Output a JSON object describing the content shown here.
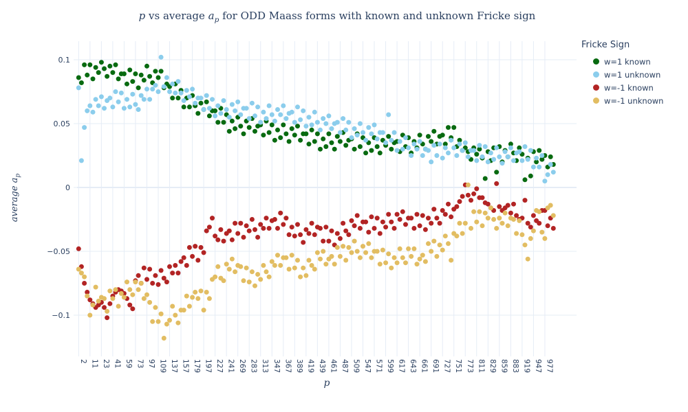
{
  "ui": {
    "title": {
      "p1": "p",
      "p2": " vs average ",
      "p3": "a",
      "p3sub": "p",
      "p4": " for ODD Maass forms with known and unknown Fricke sign"
    },
    "y_title": {
      "main": "average a",
      "sub": "p"
    },
    "x_title": "p",
    "legend_title": "Fricke Sign"
  },
  "chart_data": {
    "type": "scatter",
    "title": "p vs average a_p for ODD Maass forms with known and unknown Fricke sign",
    "xlabel": "p",
    "ylabel": "average a_p",
    "legend_title": "Fricke Sign",
    "legend_position": "top-right-outside",
    "grid": true,
    "grid_color": "#e5ecf6",
    "text_color": "#2a3f5f",
    "background": "#ffffff",
    "x_axis_type": "categorical",
    "tick_every": 4,
    "x_tick_labels": [
      2,
      11,
      23,
      41,
      59,
      73,
      97,
      109,
      137,
      157,
      179,
      197,
      227,
      241,
      269,
      283,
      313,
      347,
      367,
      389,
      419,
      439,
      461,
      487,
      509,
      547,
      571,
      599,
      617,
      643,
      661,
      691,
      727,
      751,
      773,
      811,
      829,
      859,
      883,
      919,
      947,
      977
    ],
    "y_ticks": [
      0.1,
      0.05,
      0,
      -0.05,
      -0.1
    ],
    "ylim": [
      -0.13,
      0.115
    ],
    "x_categories": [
      2,
      3,
      5,
      7,
      11,
      13,
      17,
      19,
      23,
      29,
      31,
      37,
      41,
      43,
      47,
      53,
      59,
      61,
      67,
      71,
      73,
      79,
      83,
      89,
      97,
      101,
      103,
      107,
      109,
      113,
      127,
      131,
      137,
      139,
      149,
      151,
      157,
      163,
      167,
      173,
      179,
      181,
      191,
      193,
      197,
      199,
      211,
      223,
      227,
      229,
      233,
      239,
      241,
      251,
      257,
      263,
      269,
      271,
      277,
      281,
      283,
      293,
      307,
      311,
      313,
      317,
      331,
      337,
      347,
      349,
      353,
      359,
      367,
      373,
      379,
      383,
      389,
      397,
      401,
      409,
      419,
      421,
      431,
      433,
      439,
      443,
      449,
      457,
      461,
      463,
      467,
      479,
      487,
      491,
      499,
      503,
      509,
      521,
      523,
      541,
      547,
      557,
      563,
      569,
      571,
      577,
      587,
      593,
      599,
      601,
      607,
      613,
      617,
      619,
      631,
      641,
      643,
      647,
      653,
      659,
      661,
      673,
      677,
      683,
      691,
      701,
      709,
      719,
      727,
      733,
      739,
      743,
      751,
      757,
      761,
      769,
      773,
      787,
      797,
      809,
      811,
      821,
      823,
      827,
      829,
      839,
      853,
      857,
      859,
      863,
      877,
      881,
      883,
      887,
      907,
      911,
      919,
      929,
      937,
      941,
      947,
      953,
      967,
      971,
      977,
      983,
      991,
      997
    ],
    "series": [
      {
        "name": "w=1 known",
        "color": "#086a10",
        "values": [
          0.086,
          0.082,
          0.096,
          0.088,
          0.096,
          0.085,
          0.094,
          0.09,
          0.098,
          0.093,
          0.087,
          0.095,
          0.09,
          0.096,
          0.085,
          0.089,
          0.089,
          0.081,
          0.092,
          0.083,
          0.089,
          0.078,
          0.088,
          0.084,
          0.095,
          0.087,
          0.082,
          0.091,
          0.086,
          0.091,
          0.078,
          0.081,
          0.079,
          0.07,
          0.081,
          0.07,
          0.076,
          0.063,
          0.07,
          0.063,
          0.072,
          0.064,
          0.058,
          0.066,
          0.061,
          0.067,
          0.056,
          0.06,
          0.06,
          0.051,
          0.062,
          0.051,
          0.057,
          0.044,
          0.052,
          0.046,
          0.055,
          0.048,
          0.042,
          0.052,
          0.047,
          0.054,
          0.044,
          0.048,
          0.049,
          0.041,
          0.052,
          0.043,
          0.049,
          0.037,
          0.045,
          0.039,
          0.049,
          0.042,
          0.036,
          0.046,
          0.041,
          0.048,
          0.037,
          0.042,
          0.042,
          0.034,
          0.045,
          0.036,
          0.042,
          0.03,
          0.038,
          0.032,
          0.042,
          0.035,
          0.03,
          0.04,
          0.036,
          0.043,
          0.033,
          0.037,
          0.038,
          0.03,
          0.042,
          0.032,
          0.039,
          0.027,
          0.035,
          0.029,
          0.039,
          0.032,
          0.027,
          0.037,
          0.033,
          0.04,
          0.03,
          0.035,
          0.036,
          0.028,
          0.041,
          0.032,
          0.039,
          0.027,
          0.036,
          0.031,
          0.041,
          0.034,
          0.03,
          0.04,
          0.036,
          0.044,
          0.034,
          0.04,
          0.041,
          0.034,
          0.047,
          0.039,
          0.047,
          0.032,
          0.037,
          0.029,
          0.031,
          0.028,
          0.022,
          0.031,
          0.026,
          0.03,
          0.023,
          0.007,
          0.028,
          0.021,
          0.031,
          0.012,
          0.032,
          0.02,
          0.029,
          0.024,
          0.034,
          0.027,
          0.021,
          0.031,
          0.026,
          0.006,
          0.023,
          0.009,
          0.028,
          0.02,
          0.029,
          0.022,
          0.025,
          0.016,
          0.024,
          0.018
        ]
      },
      {
        "name": "w=1 unknown",
        "color": "#8bcdec",
        "values": [
          0.078,
          0.021,
          0.047,
          0.06,
          0.064,
          0.059,
          0.069,
          0.064,
          0.071,
          0.062,
          0.068,
          0.07,
          0.063,
          0.075,
          0.067,
          0.074,
          0.062,
          0.069,
          0.063,
          0.073,
          0.065,
          0.061,
          0.072,
          0.069,
          0.077,
          0.069,
          0.077,
          0.08,
          0.075,
          0.102,
          0.079,
          0.086,
          0.075,
          0.081,
          0.074,
          0.083,
          0.074,
          0.068,
          0.076,
          0.071,
          0.077,
          0.066,
          0.07,
          0.07,
          0.061,
          0.072,
          0.062,
          0.069,
          0.056,
          0.064,
          0.058,
          0.068,
          0.061,
          0.055,
          0.065,
          0.06,
          0.067,
          0.057,
          0.062,
          0.062,
          0.054,
          0.066,
          0.056,
          0.063,
          0.051,
          0.059,
          0.054,
          0.064,
          0.057,
          0.052,
          0.061,
          0.057,
          0.064,
          0.054,
          0.058,
          0.059,
          0.051,
          0.063,
          0.053,
          0.06,
          0.048,
          0.055,
          0.049,
          0.059,
          0.051,
          0.045,
          0.054,
          0.05,
          0.056,
          0.046,
          0.05,
          0.051,
          0.043,
          0.054,
          0.045,
          0.051,
          0.039,
          0.046,
          0.041,
          0.05,
          0.043,
          0.037,
          0.047,
          0.042,
          0.049,
          0.038,
          0.043,
          0.043,
          0.035,
          0.057,
          0.037,
          0.043,
          0.029,
          0.036,
          0.03,
          0.039,
          0.031,
          0.025,
          0.034,
          0.03,
          0.036,
          0.025,
          0.03,
          0.029,
          0.02,
          0.033,
          0.025,
          0.034,
          0.023,
          0.031,
          0.027,
          0.037,
          0.031,
          0.025,
          0.034,
          0.029,
          0.035,
          0.024,
          0.029,
          0.029,
          0.021,
          0.033,
          0.024,
          0.032,
          0.02,
          0.027,
          0.022,
          0.031,
          0.024,
          0.019,
          0.028,
          0.024,
          0.031,
          0.021,
          0.027,
          0.028,
          0.021,
          0.032,
          0.022,
          0.029,
          0.016,
          0.023,
          0.016,
          0.025,
          0.005,
          0.01,
          0.018,
          0.012
        ]
      },
      {
        "name": "w=-1 known",
        "color": "#b22424",
        "values": [
          -0.048,
          -0.062,
          -0.075,
          -0.082,
          -0.088,
          -0.091,
          -0.094,
          -0.092,
          -0.09,
          -0.094,
          -0.102,
          -0.091,
          -0.085,
          -0.082,
          -0.08,
          -0.081,
          -0.083,
          -0.087,
          -0.092,
          -0.095,
          -0.073,
          -0.069,
          -0.075,
          -0.063,
          -0.072,
          -0.064,
          -0.075,
          -0.069,
          -0.076,
          -0.065,
          -0.071,
          -0.074,
          -0.062,
          -0.067,
          -0.061,
          -0.067,
          -0.058,
          -0.055,
          -0.061,
          -0.047,
          -0.054,
          -0.046,
          -0.057,
          -0.047,
          -0.051,
          -0.034,
          -0.031,
          -0.024,
          -0.038,
          -0.041,
          -0.033,
          -0.042,
          -0.036,
          -0.034,
          -0.041,
          -0.028,
          -0.036,
          -0.028,
          -0.039,
          -0.03,
          -0.034,
          -0.025,
          -0.033,
          -0.039,
          -0.029,
          -0.032,
          -0.024,
          -0.032,
          -0.026,
          -0.025,
          -0.032,
          -0.02,
          -0.029,
          -0.024,
          -0.037,
          -0.031,
          -0.038,
          -0.029,
          -0.037,
          -0.043,
          -0.033,
          -0.036,
          -0.028,
          -0.037,
          -0.031,
          -0.032,
          -0.042,
          -0.031,
          -0.042,
          -0.034,
          -0.045,
          -0.036,
          -0.04,
          -0.028,
          -0.034,
          -0.037,
          -0.026,
          -0.03,
          -0.022,
          -0.032,
          -0.027,
          -0.027,
          -0.035,
          -0.023,
          -0.032,
          -0.024,
          -0.036,
          -0.027,
          -0.031,
          -0.021,
          -0.027,
          -0.032,
          -0.021,
          -0.025,
          -0.019,
          -0.029,
          -0.024,
          -0.024,
          -0.032,
          -0.021,
          -0.03,
          -0.022,
          -0.033,
          -0.024,
          -0.028,
          -0.017,
          -0.024,
          -0.028,
          -0.018,
          -0.021,
          -0.013,
          -0.023,
          -0.017,
          -0.015,
          -0.011,
          -0.007,
          0.002,
          -0.006,
          -0.01,
          -0.005,
          -0.001,
          -0.008,
          -0.008,
          -0.012,
          -0.013,
          -0.016,
          -0.018,
          0.003,
          -0.015,
          -0.018,
          -0.016,
          -0.014,
          -0.02,
          -0.013,
          -0.022,
          -0.025,
          -0.024,
          -0.01,
          -0.028,
          -0.031,
          -0.022,
          -0.026,
          -0.028,
          -0.018,
          -0.018,
          -0.03,
          -0.024,
          -0.032
        ]
      },
      {
        "name": "w=-1 unknown",
        "color": "#e2bd62",
        "values": [
          -0.064,
          -0.067,
          -0.07,
          -0.085,
          -0.1,
          -0.092,
          -0.078,
          -0.089,
          -0.086,
          -0.087,
          -0.097,
          -0.081,
          -0.087,
          -0.08,
          -0.093,
          -0.083,
          -0.086,
          -0.074,
          -0.08,
          -0.084,
          -0.074,
          -0.08,
          -0.075,
          -0.087,
          -0.084,
          -0.09,
          -0.105,
          -0.094,
          -0.105,
          -0.099,
          -0.118,
          -0.107,
          -0.104,
          -0.093,
          -0.1,
          -0.106,
          -0.096,
          -0.096,
          -0.085,
          -0.093,
          -0.086,
          -0.082,
          -0.087,
          -0.081,
          -0.096,
          -0.082,
          -0.087,
          -0.072,
          -0.07,
          -0.062,
          -0.071,
          -0.073,
          -0.06,
          -0.064,
          -0.056,
          -0.066,
          -0.061,
          -0.062,
          -0.073,
          -0.063,
          -0.074,
          -0.066,
          -0.077,
          -0.068,
          -0.072,
          -0.061,
          -0.066,
          -0.07,
          -0.058,
          -0.061,
          -0.053,
          -0.061,
          -0.055,
          -0.055,
          -0.064,
          -0.053,
          -0.063,
          -0.057,
          -0.07,
          -0.063,
          -0.069,
          -0.057,
          -0.061,
          -0.064,
          -0.051,
          -0.056,
          -0.05,
          -0.06,
          -0.056,
          -0.054,
          -0.06,
          -0.047,
          -0.054,
          -0.046,
          -0.057,
          -0.047,
          -0.051,
          -0.042,
          -0.05,
          -0.055,
          -0.046,
          -0.051,
          -0.044,
          -0.055,
          -0.05,
          -0.05,
          -0.06,
          -0.049,
          -0.059,
          -0.052,
          -0.063,
          -0.055,
          -0.059,
          -0.048,
          -0.055,
          -0.059,
          -0.048,
          -0.054,
          -0.048,
          -0.06,
          -0.056,
          -0.053,
          -0.058,
          -0.044,
          -0.05,
          -0.042,
          -0.054,
          -0.045,
          -0.049,
          -0.038,
          -0.044,
          -0.057,
          -0.036,
          -0.038,
          -0.028,
          -0.036,
          -0.028,
          0.002,
          -0.032,
          -0.019,
          -0.027,
          -0.019,
          -0.03,
          -0.02,
          -0.024,
          -0.016,
          -0.025,
          -0.032,
          -0.024,
          -0.028,
          -0.02,
          -0.03,
          -0.024,
          -0.025,
          -0.036,
          -0.026,
          -0.037,
          -0.045,
          -0.056,
          -0.04,
          -0.034,
          -0.018,
          -0.019,
          -0.035,
          -0.04,
          -0.016,
          -0.014,
          -0.022
        ]
      }
    ]
  }
}
